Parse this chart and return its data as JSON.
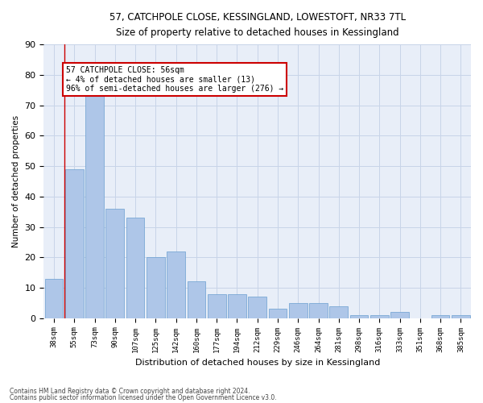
{
  "title_line1": "57, CATCHPOLE CLOSE, KESSINGLAND, LOWESTOFT, NR33 7TL",
  "title_line2": "Size of property relative to detached houses in Kessingland",
  "xlabel": "Distribution of detached houses by size in Kessingland",
  "ylabel": "Number of detached properties",
  "categories": [
    "38sqm",
    "55sqm",
    "73sqm",
    "90sqm",
    "107sqm",
    "125sqm",
    "142sqm",
    "160sqm",
    "177sqm",
    "194sqm",
    "212sqm",
    "229sqm",
    "246sqm",
    "264sqm",
    "281sqm",
    "298sqm",
    "316sqm",
    "333sqm",
    "351sqm",
    "368sqm",
    "385sqm"
  ],
  "values": [
    13,
    49,
    73,
    36,
    33,
    20,
    22,
    12,
    8,
    8,
    7,
    3,
    5,
    5,
    4,
    1,
    1,
    2,
    0,
    1,
    1
  ],
  "bar_color": "#aec6e8",
  "bar_edge_color": "#6a9fd0",
  "grid_color": "#c8d4e8",
  "background_color": "#e8eef8",
  "annotation_line1": "57 CATCHPOLE CLOSE: 56sqm",
  "annotation_line2": "← 4% of detached houses are smaller (13)",
  "annotation_line3": "96% of semi-detached houses are larger (276) →",
  "property_line_x": 0.5,
  "ylim": [
    0,
    90
  ],
  "yticks": [
    0,
    10,
    20,
    30,
    40,
    50,
    60,
    70,
    80,
    90
  ],
  "footer_line1": "Contains HM Land Registry data © Crown copyright and database right 2024.",
  "footer_line2": "Contains public sector information licensed under the Open Government Licence v3.0."
}
